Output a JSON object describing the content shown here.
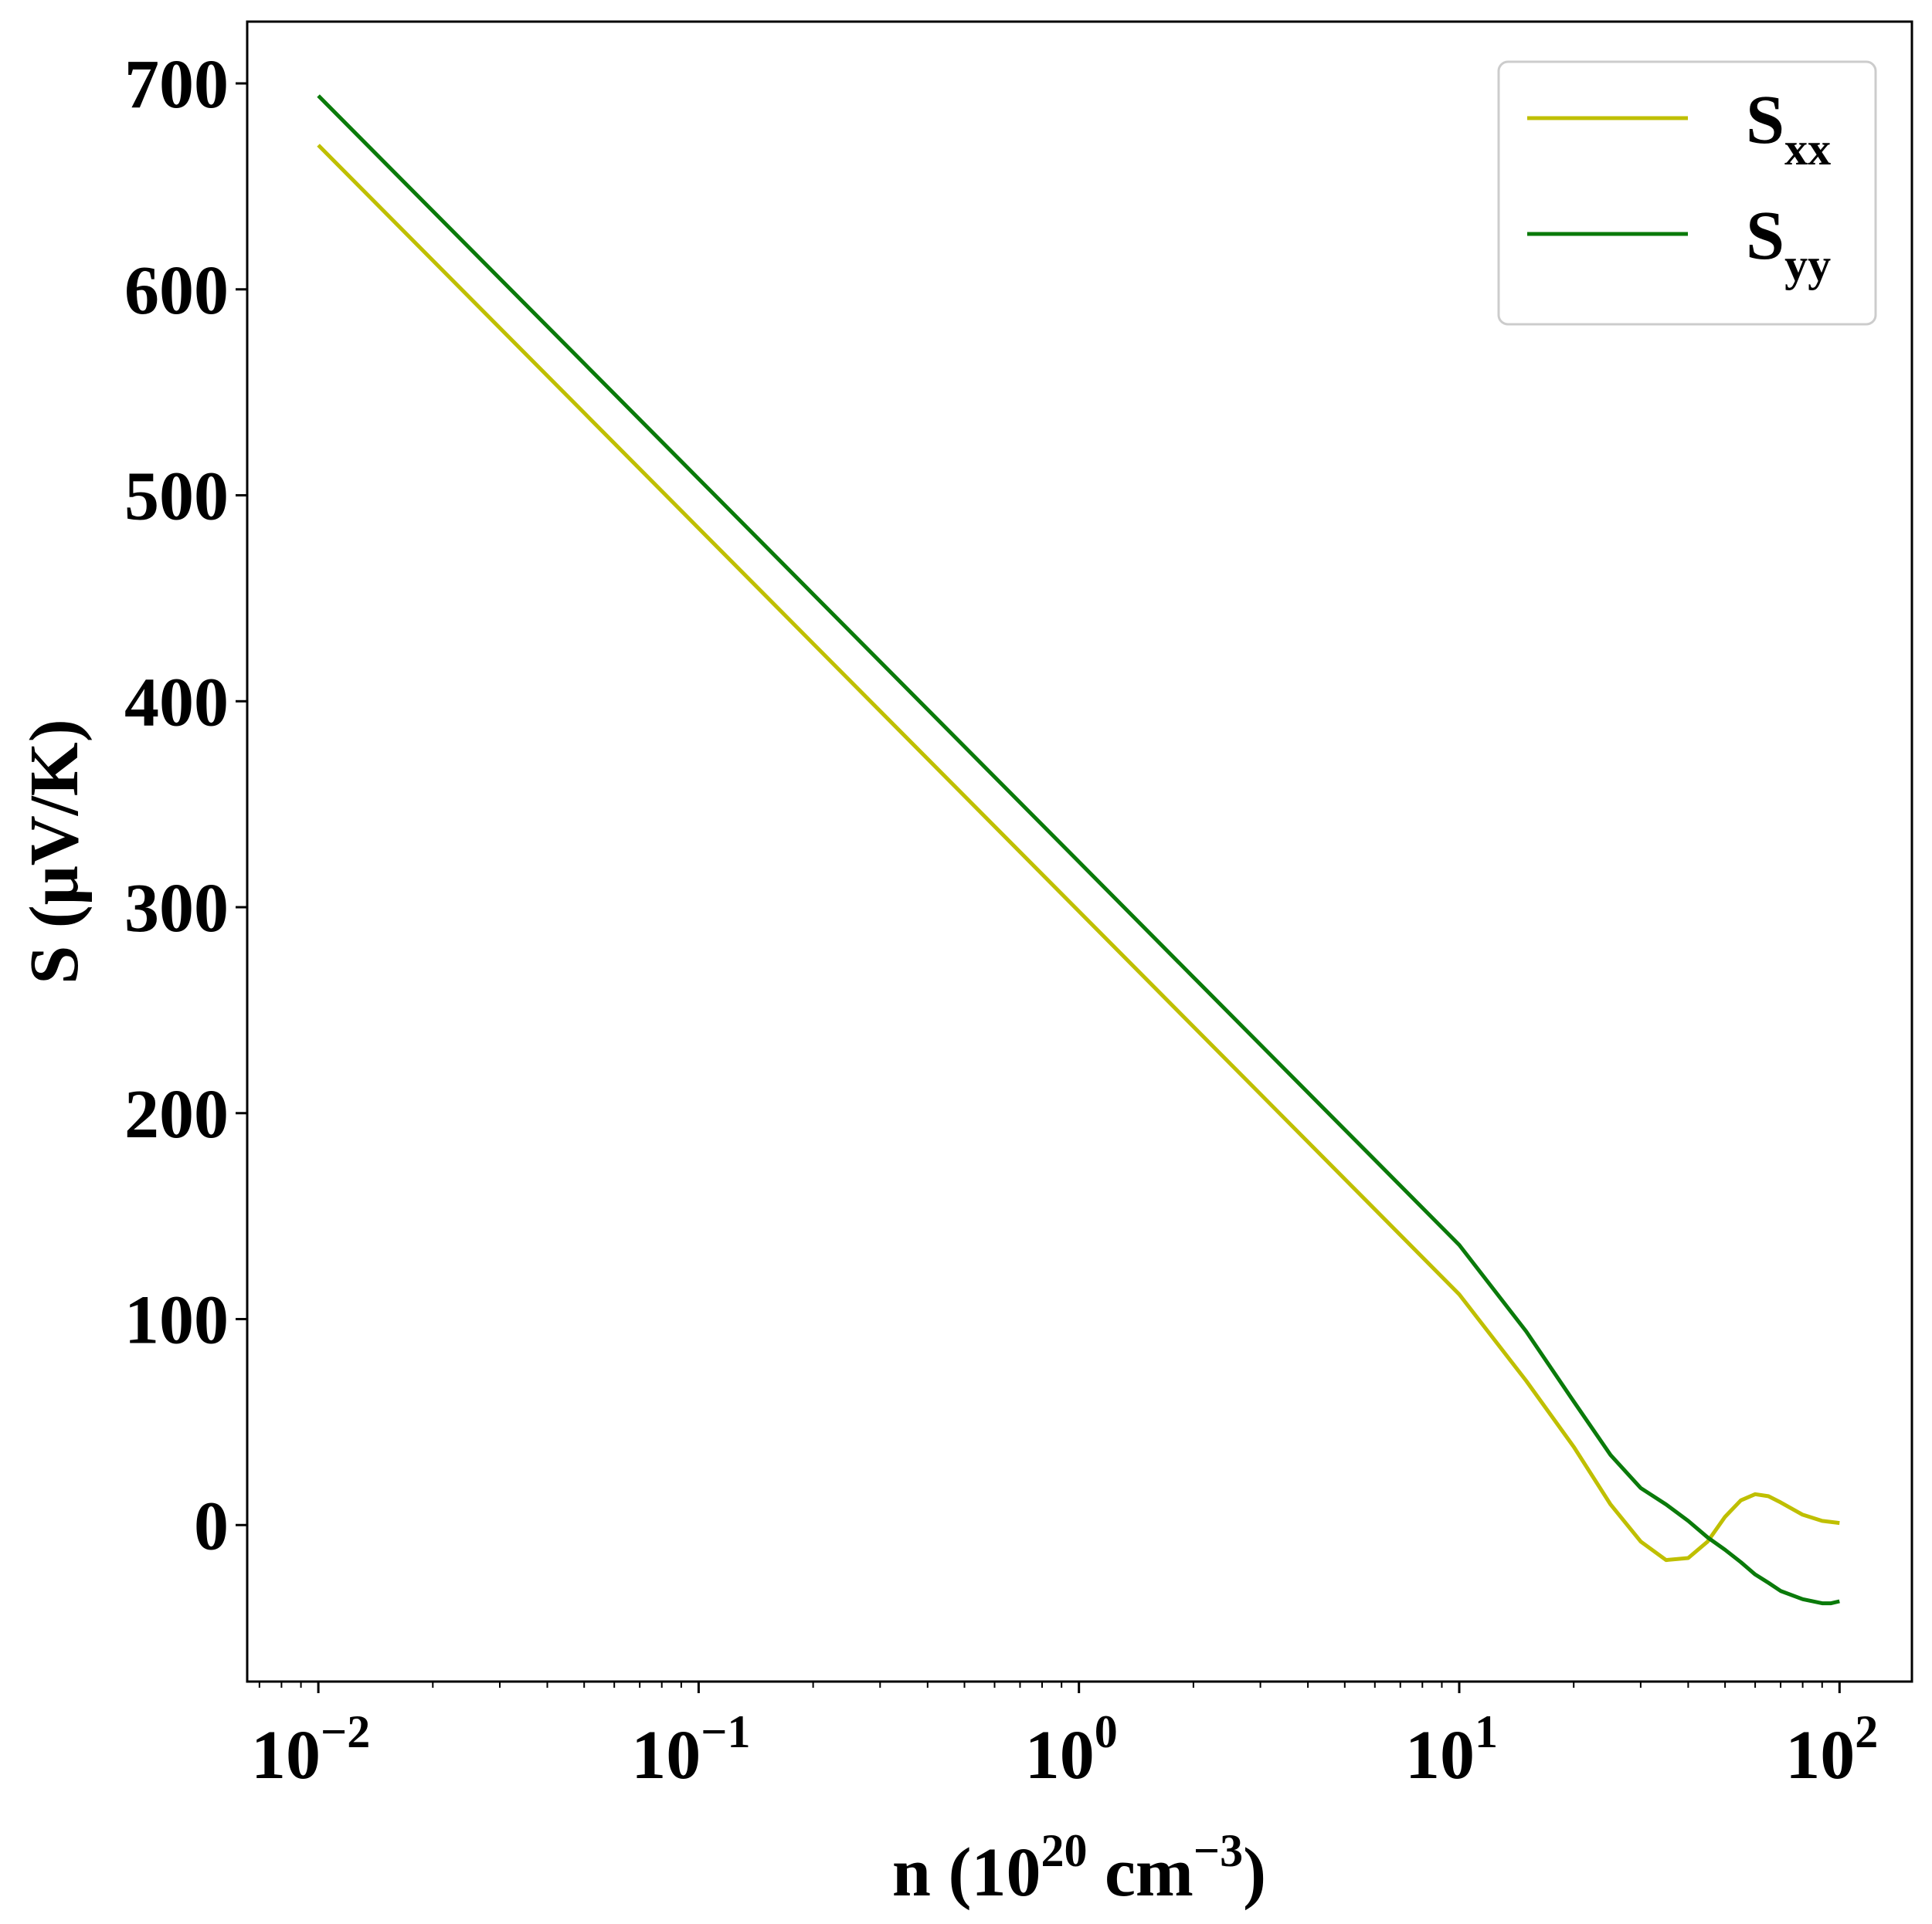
{
  "chart_data": {
    "type": "line",
    "xscale": "log",
    "xlim": [
      0.0065,
      155
    ],
    "ylim": [
      -76,
      730
    ],
    "xlabel": {
      "main": "n (10",
      "exp": "20",
      "unit": " cm",
      "unit_exp": "−3",
      "close": ")"
    },
    "ylabel": "S (μV/K)",
    "x_ticks": [
      {
        "value": 0.01,
        "base": "10",
        "exp": "−2"
      },
      {
        "value": 0.1,
        "base": "10",
        "exp": "−1"
      },
      {
        "value": 1,
        "base": "10",
        "exp": "0"
      },
      {
        "value": 10,
        "base": "10",
        "exp": "1"
      },
      {
        "value": 100,
        "base": "10",
        "exp": "2"
      }
    ],
    "y_ticks": [
      0,
      100,
      200,
      300,
      400,
      500,
      600,
      700
    ],
    "legend_position": "top-right",
    "grid": false,
    "series": [
      {
        "name": "S",
        "name_sub": "xx",
        "color": "#bfbf00",
        "x": [
          0.01,
          0.02,
          0.05,
          0.1,
          0.2,
          0.5,
          1,
          2,
          5,
          10,
          15,
          20,
          25,
          30,
          35,
          40,
          45,
          50,
          55,
          60,
          65,
          70,
          80,
          90,
          100
        ],
        "y": [
          670,
          614,
          540,
          484,
          428,
          354,
          298,
          242,
          168,
          112,
          70,
          38,
          10,
          -8,
          -17,
          -16,
          -8,
          4,
          12,
          15,
          14,
          11,
          5,
          2,
          1
        ]
      },
      {
        "name": "S",
        "name_sub": "yy",
        "color": "#0a7a0a",
        "x": [
          0.01,
          0.02,
          0.05,
          0.1,
          0.2,
          0.5,
          1,
          2,
          5,
          10,
          15,
          20,
          25,
          30,
          35,
          40,
          45,
          50,
          55,
          60,
          65,
          70,
          80,
          90,
          95,
          100
        ],
        "y": [
          694,
          638,
          564,
          508,
          452,
          378,
          322,
          266,
          192,
          136,
          94,
          60,
          34,
          18,
          10,
          2,
          -6,
          -12,
          -18,
          -24,
          -28,
          -32,
          -36,
          -38,
          -38,
          -37
        ]
      }
    ]
  }
}
